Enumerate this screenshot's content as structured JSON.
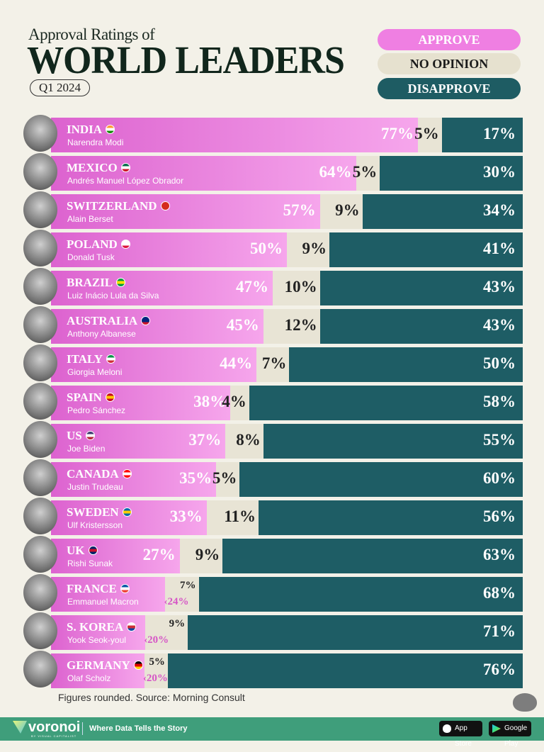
{
  "header": {
    "subtitle": "Approval Ratings of",
    "title": "WORLD LEADERS",
    "period": "Q1 2024"
  },
  "legend": {
    "approve": "APPROVE",
    "no_opinion": "NO OPINION",
    "disapprove": "DISAPPROVE"
  },
  "colors": {
    "approve": "#ef7fe2",
    "no_opinion": "#e8e4d5",
    "disapprove": "#1e5d65",
    "background": "#f3f1e8",
    "footer": "#3f9e7b"
  },
  "chart_data": {
    "type": "bar",
    "orientation": "horizontal-stacked-100",
    "series_order": [
      "approve",
      "no_opinion",
      "disapprove"
    ],
    "rows": [
      {
        "country": "INDIA",
        "leader": "Narendra Modi",
        "approve": 77,
        "no_opinion": 5,
        "disapprove": 17,
        "flag": [
          "#ff9933",
          "#ffffff",
          "#138808"
        ]
      },
      {
        "country": "MEXICO",
        "leader": "Andrés Manuel López Obrador",
        "approve": 64,
        "no_opinion": 5,
        "disapprove": 30,
        "flag": [
          "#006847",
          "#ffffff",
          "#ce1126"
        ]
      },
      {
        "country": "SWITZERLAND",
        "leader": "Alain Berset",
        "approve": 57,
        "no_opinion": 9,
        "disapprove": 34,
        "flag": [
          "#d52b1e",
          "#d52b1e",
          "#d52b1e"
        ]
      },
      {
        "country": "POLAND",
        "leader": "Donald Tusk",
        "approve": 50,
        "no_opinion": 9,
        "disapprove": 41,
        "flag": [
          "#ffffff",
          "#ffffff",
          "#dc143c"
        ]
      },
      {
        "country": "BRAZIL",
        "leader": "Luiz Inácio Lula da Silva",
        "approve": 47,
        "no_opinion": 10,
        "disapprove": 43,
        "flag": [
          "#009c3b",
          "#ffdf00",
          "#009c3b"
        ]
      },
      {
        "country": "AUSTRALIA",
        "leader": "Anthony Albanese",
        "approve": 45,
        "no_opinion": 12,
        "disapprove": 43,
        "flag": [
          "#00247d",
          "#00247d",
          "#cf142b"
        ]
      },
      {
        "country": "ITALY",
        "leader": "Giorgia Meloni",
        "approve": 44,
        "no_opinion": 7,
        "disapprove": 50,
        "flag": [
          "#009246",
          "#ffffff",
          "#ce2b37"
        ]
      },
      {
        "country": "SPAIN",
        "leader": "Pedro Sánchez",
        "approve": 38,
        "no_opinion": 4,
        "disapprove": 58,
        "flag": [
          "#c60b1e",
          "#ffc400",
          "#c60b1e"
        ]
      },
      {
        "country": "US",
        "leader": "Joe Biden",
        "approve": 37,
        "no_opinion": 8,
        "disapprove": 55,
        "flag": [
          "#3c3b6e",
          "#ffffff",
          "#b22234"
        ]
      },
      {
        "country": "CANADA",
        "leader": "Justin Trudeau",
        "approve": 35,
        "no_opinion": 5,
        "disapprove": 60,
        "flag": [
          "#ff0000",
          "#ffffff",
          "#ff0000"
        ]
      },
      {
        "country": "SWEDEN",
        "leader": "Ulf Kristersson",
        "approve": 33,
        "no_opinion": 11,
        "disapprove": 56,
        "flag": [
          "#006aa7",
          "#fecc00",
          "#006aa7"
        ]
      },
      {
        "country": "UK",
        "leader": "Rishi Sunak",
        "approve": 27,
        "no_opinion": 9,
        "disapprove": 63,
        "flag": [
          "#012169",
          "#c8102e",
          "#012169"
        ]
      },
      {
        "country": "FRANCE",
        "leader": "Emmanuel Macron",
        "approve": 24,
        "no_opinion": 7,
        "disapprove": 68,
        "flag": [
          "#0055a4",
          "#ffffff",
          "#ef4135"
        ]
      },
      {
        "country": "S. KOREA",
        "leader": "Yook Seok-youl",
        "approve": 20,
        "no_opinion": 9,
        "disapprove": 71,
        "flag": [
          "#ffffff",
          "#cd2e3a",
          "#0047a0"
        ]
      },
      {
        "country": "GERMANY",
        "leader": "Olaf Scholz",
        "approve": 20,
        "no_opinion": 5,
        "disapprove": 76,
        "flag": [
          "#000000",
          "#dd0000",
          "#ffce00"
        ]
      }
    ]
  },
  "source": "Figures rounded. Source: Morning Consult",
  "footer": {
    "brand": "voronoi",
    "brand_sub": "BY VISUAL CAPITALIST",
    "tagline": "Where Data Tells the Story",
    "app_store": "App Store",
    "google_play": "Google Play"
  }
}
